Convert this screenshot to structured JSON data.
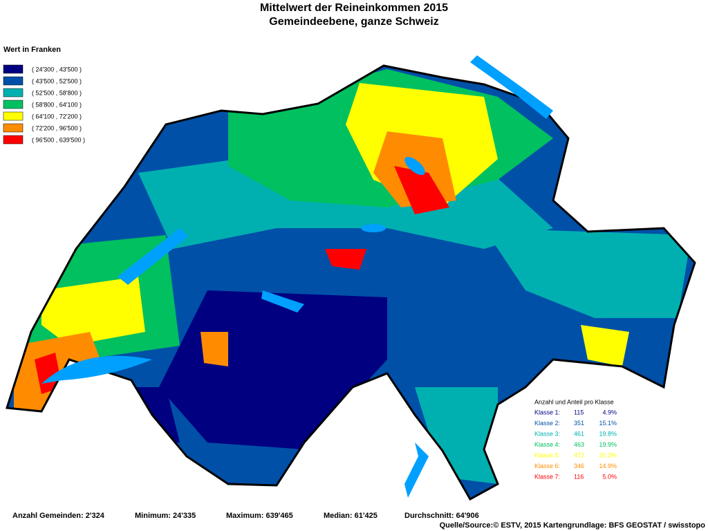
{
  "title": {
    "line1": "Mittelwert der Reineinkommen 2015",
    "line2": "Gemeindeebene, ganze Schweiz"
  },
  "legend": {
    "title": "Wert in Franken",
    "classes": [
      {
        "label": "( 24'300 , 43'500 )",
        "color": "#000080"
      },
      {
        "label": "( 43'500 , 52'500 )",
        "color": "#0050a8"
      },
      {
        "label": "( 52'500 , 58'800 )",
        "color": "#00b0b0"
      },
      {
        "label": "( 58'800 , 64'100 )",
        "color": "#00c060"
      },
      {
        "label": "( 64'100 , 72'200 )",
        "color": "#ffff00"
      },
      {
        "label": "( 72'200 , 96'500 )",
        "color": "#ff8c00"
      },
      {
        "label": "( 96'500 , 639'500 )",
        "color": "#ff0000"
      }
    ]
  },
  "stats": {
    "title": "Anzahl und Anteil pro Klasse",
    "rows": [
      {
        "label": "Klasse  1:",
        "count": 115,
        "share": "4.9%"
      },
      {
        "label": "Klasse  2:",
        "count": 351,
        "share": "15.1%"
      },
      {
        "label": "Klasse  3:",
        "count": 461,
        "share": "19.8%"
      },
      {
        "label": "Klasse  4:",
        "count": 463,
        "share": "19.9%"
      },
      {
        "label": "Klasse  5:",
        "count": 472,
        "share": "20.3%"
      },
      {
        "label": "Klasse  6:",
        "count": 346,
        "share": "14.9%"
      },
      {
        "label": "Klasse  7:",
        "count": 116,
        "share": "5.0%"
      }
    ]
  },
  "summary": [
    "Anzahl Gemeinden: 2'324",
    "Minimum: 24'335",
    "Maximum: 639'465",
    "Median: 61'425",
    "Durchschnitt: 64'906"
  ],
  "source": "Quelle/Source:© ESTV, 2015 Kartengrundlage: BFS GEOSTAT / swisstopo"
}
